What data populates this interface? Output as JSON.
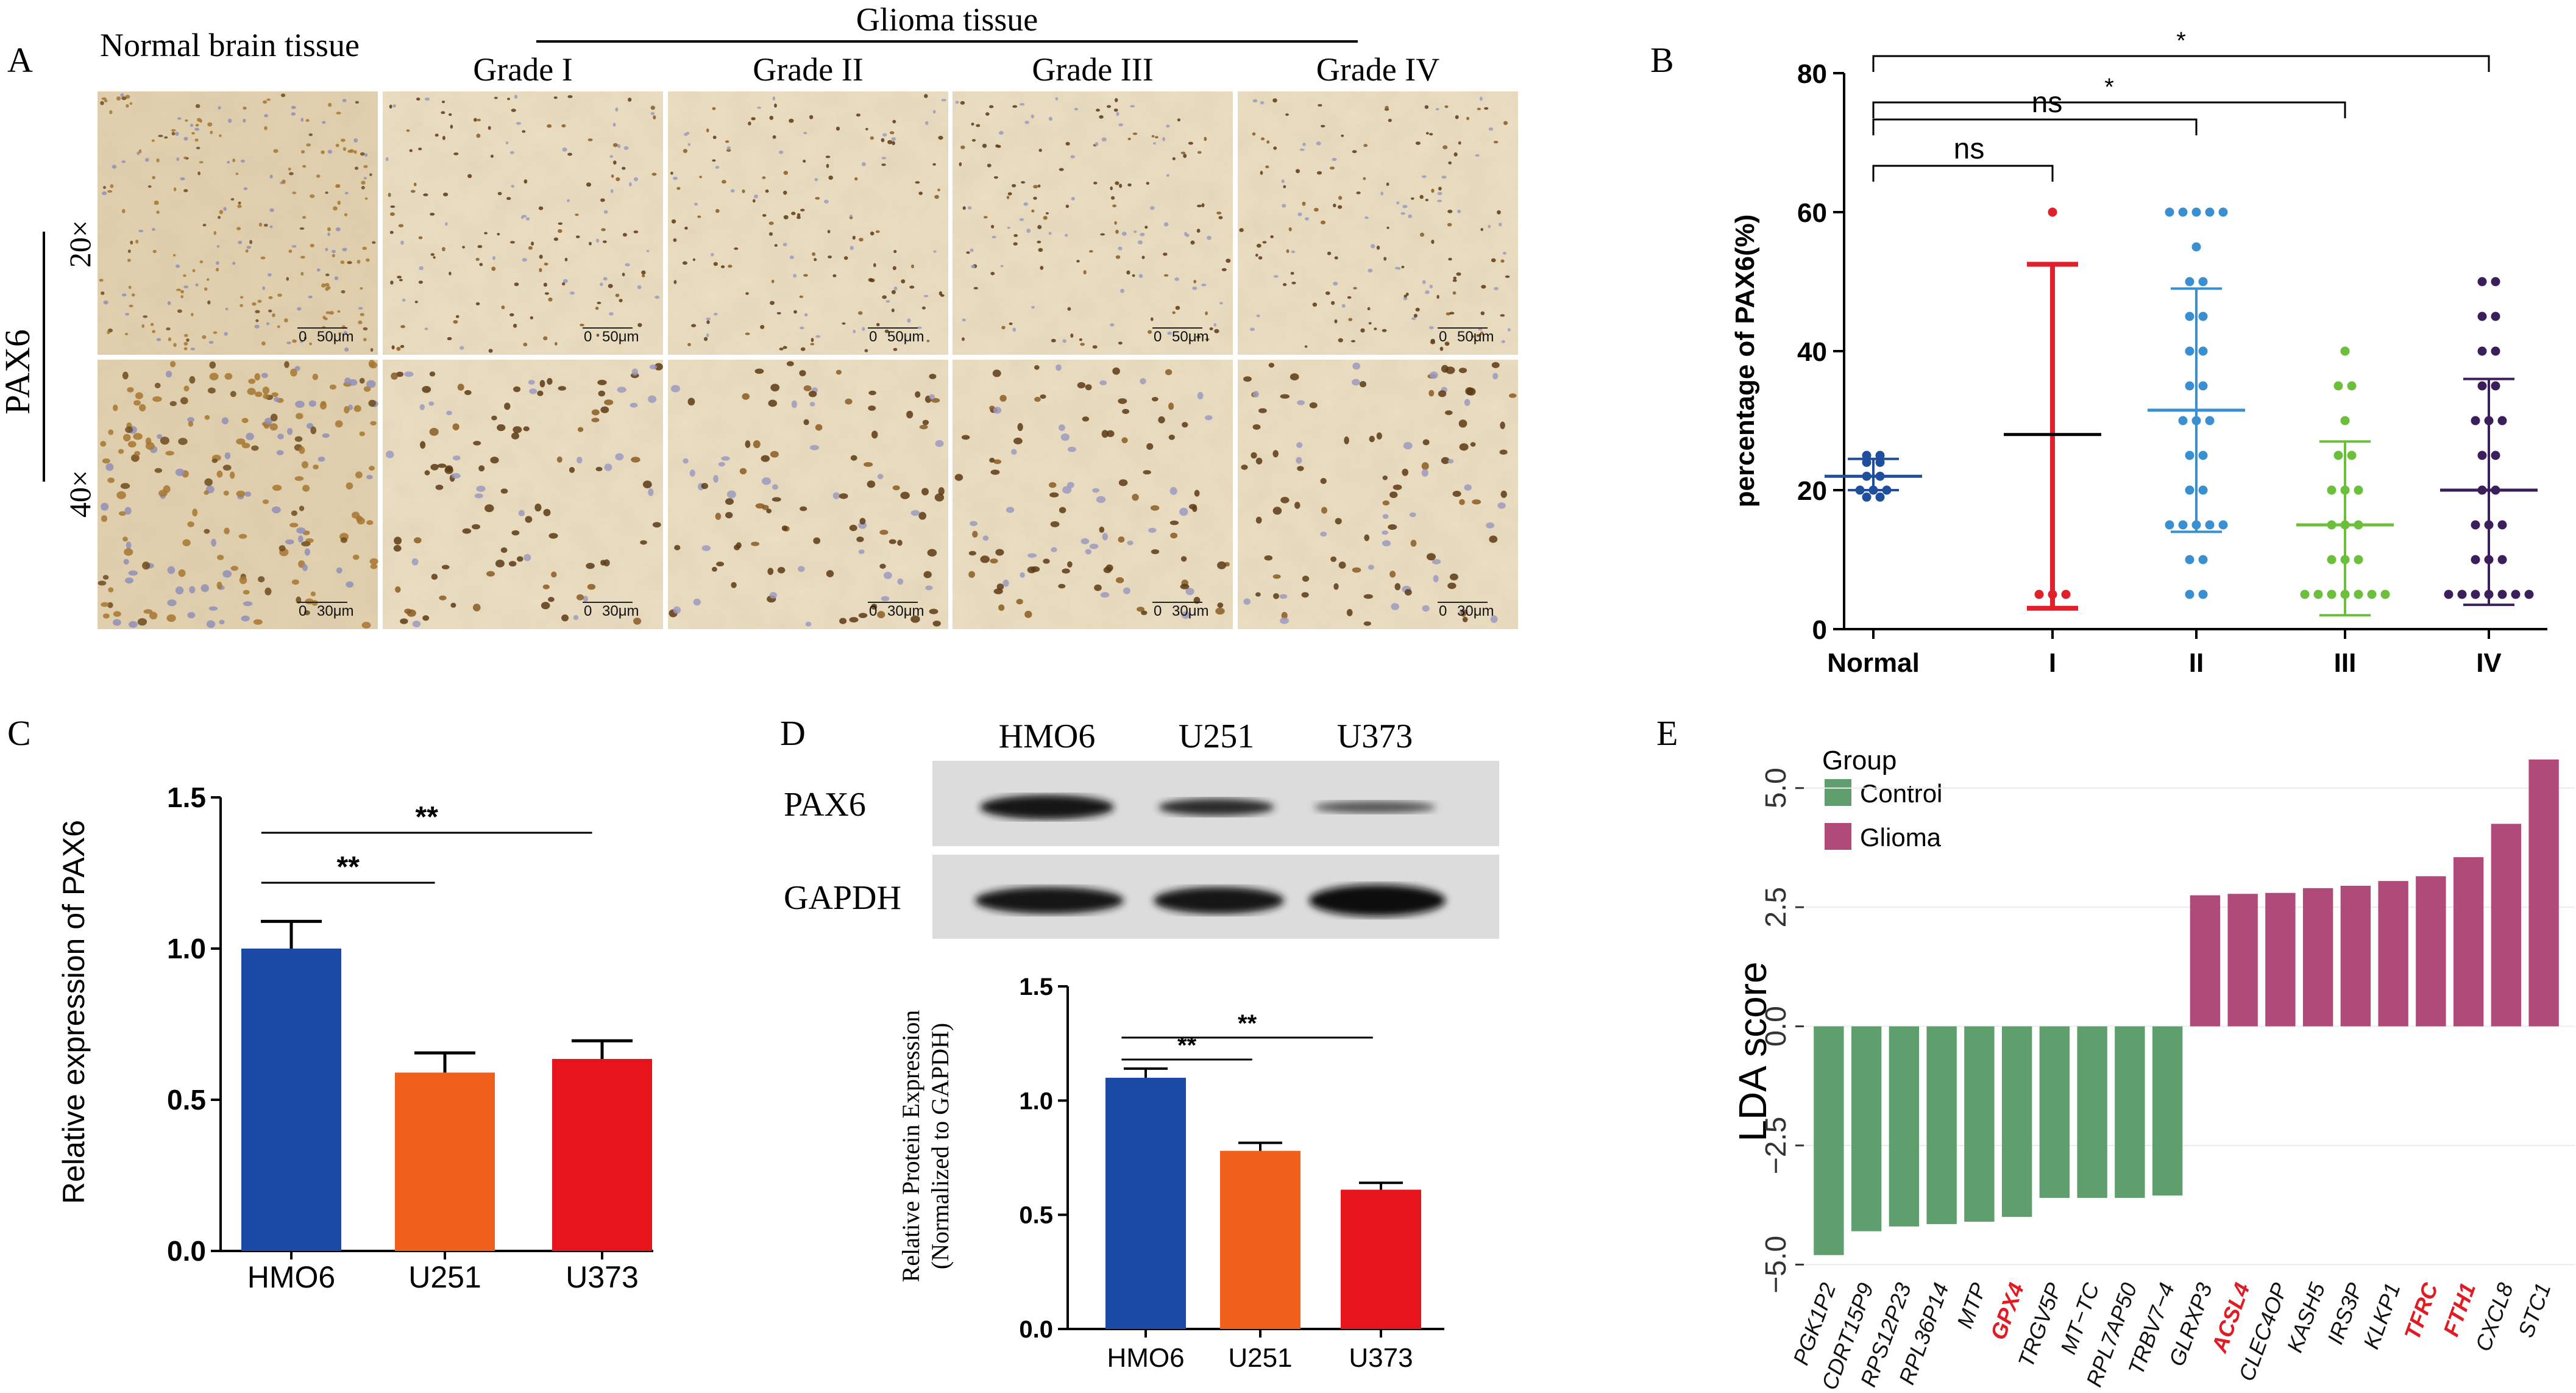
{
  "panels": {
    "A": {
      "letter": "A",
      "normal_label": "Normal brain tissue",
      "glioma_label": "Glioma tissue",
      "grades": [
        "Grade I",
        "Grade II",
        "Grade III",
        "Grade IV"
      ],
      "stain_label": "PAX6",
      "row_labels": [
        "20×",
        "40×"
      ],
      "scalebar_20x": [
        "0",
        "50μm"
      ],
      "scalebar_40x": [
        "0",
        "30μm"
      ]
    },
    "B": {
      "letter": "B"
    },
    "C": {
      "letter": "C"
    },
    "D": {
      "letter": "D",
      "blot_lanes": [
        "HMO6",
        "U251",
        "U373"
      ],
      "blot_rows": [
        "PAX6",
        "GAPDH"
      ]
    },
    "E": {
      "letter": "E"
    }
  },
  "colors": {
    "normal_navy": "#1f4e9c",
    "grade1_red": "#e0202a",
    "grade2_blue": "#3a8fd0",
    "grade3_green": "#6cbf3a",
    "grade4_purple": "#3b1f5a",
    "bar_blue": "#1a49a6",
    "bar_orange": "#f0601a",
    "bar_red": "#e8141c",
    "control_green": "#5f9f6e",
    "glioma_pink": "#b04a78",
    "highlight_red": "#e01b24"
  },
  "chart_data": [
    {
      "id": "B",
      "type": "scatter",
      "ylabel": "percentage of PAX6(%)",
      "categories": [
        "Normal",
        "I",
        "II",
        "III",
        "IV"
      ],
      "ylim": [
        0,
        80
      ],
      "yticks": [
        0,
        20,
        40,
        60,
        80
      ],
      "summary": [
        {
          "mean": 22,
          "sd_low": 20,
          "sd_high": 24.5
        },
        {
          "mean": 28,
          "sd_low": 3,
          "sd_high": 52.5
        },
        {
          "mean": 31.5,
          "sd_low": 14,
          "sd_high": 49
        },
        {
          "mean": 15,
          "sd_low": 2,
          "sd_high": 27
        },
        {
          "mean": 20,
          "sd_low": 3.5,
          "sd_high": 36
        }
      ],
      "points": [
        [
          19,
          19,
          20,
          20,
          20,
          22,
          22,
          24,
          24,
          25,
          25
        ],
        [
          60,
          5,
          5,
          5
        ],
        [
          60,
          60,
          60,
          60,
          60,
          55,
          50,
          50,
          45,
          45,
          40,
          40,
          35,
          35,
          30,
          30,
          30,
          25,
          25,
          20,
          20,
          15,
          15,
          15,
          15,
          15,
          10,
          10,
          5,
          5
        ],
        [
          40,
          35,
          35,
          30,
          25,
          25,
          20,
          20,
          20,
          15,
          15,
          15,
          10,
          10,
          10,
          5,
          5,
          5,
          5,
          5,
          5,
          5
        ],
        [
          50,
          50,
          45,
          45,
          40,
          40,
          35,
          35,
          30,
          30,
          30,
          25,
          25,
          20,
          20,
          15,
          15,
          15,
          10,
          10,
          10,
          5,
          5,
          5,
          5,
          5,
          5,
          5
        ]
      ],
      "comparisons": [
        {
          "from": 0,
          "to": 1,
          "label": "ns"
        },
        {
          "from": 0,
          "to": 2,
          "label": "ns"
        },
        {
          "from": 0,
          "to": 3,
          "label": "*"
        },
        {
          "from": 0,
          "to": 4,
          "label": "*"
        }
      ]
    },
    {
      "id": "C",
      "type": "bar",
      "ylabel": "Relative expression of PAX6",
      "categories": [
        "HMO6",
        "U251",
        "U373"
      ],
      "values": [
        1.0,
        0.59,
        0.635
      ],
      "errors": [
        0.09,
        0.065,
        0.06
      ],
      "ylim": [
        0,
        1.5
      ],
      "yticks": [
        "0.0",
        "0.5",
        "1.0",
        "1.5"
      ],
      "comparisons": [
        {
          "from": 0,
          "to": 1,
          "label": "**"
        },
        {
          "from": 0,
          "to": 2,
          "label": "**"
        }
      ]
    },
    {
      "id": "D",
      "type": "bar",
      "ylabel_lines": [
        "Relative Protein Expression",
        "(Normalized to GAPDH)"
      ],
      "categories": [
        "HMO6",
        "U251",
        "U373"
      ],
      "values": [
        1.1,
        0.78,
        0.61
      ],
      "errors": [
        0.04,
        0.035,
        0.03
      ],
      "ylim": [
        0,
        1.5
      ],
      "yticks": [
        "0.0",
        "0.5",
        "1.0",
        "1.5"
      ],
      "comparisons": [
        {
          "from": 0,
          "to": 1,
          "label": "**"
        },
        {
          "from": 0,
          "to": 2,
          "label": "**"
        }
      ]
    },
    {
      "id": "E",
      "type": "bar",
      "ylabel": "LDA score",
      "legend_title": "Group",
      "legend": [
        "Control",
        "Glioma"
      ],
      "yticks": [
        "−5.0",
        "−2.5",
        "0.0",
        "2.5",
        "5.0"
      ],
      "ytick_values": [
        -5,
        -2.5,
        0,
        2.5,
        5
      ],
      "ylim": [
        -5.2,
        5.7
      ],
      "categories": [
        "PGK1P2",
        "CDRT15P9",
        "RPS12P23",
        "RPL36P14",
        "MTP",
        "GPX4",
        "TRGV5P",
        "MT−TC",
        "RPL7AP50",
        "TRBV7−4",
        "GLRXP3",
        "ACSL4",
        "CLEC4OP",
        "KASH5",
        "IRS3P",
        "KLKP1",
        "TFRC",
        "FTH1",
        "CXCL8",
        "STC1"
      ],
      "values": [
        -4.8,
        -4.3,
        -4.2,
        -4.15,
        -4.1,
        -4.0,
        -3.6,
        -3.6,
        -3.6,
        -3.55,
        2.75,
        2.78,
        2.8,
        2.9,
        2.95,
        3.05,
        3.15,
        3.55,
        4.25,
        5.6
      ],
      "groups": [
        "Control",
        "Control",
        "Control",
        "Control",
        "Control",
        "Control",
        "Control",
        "Control",
        "Control",
        "Control",
        "Glioma",
        "Glioma",
        "Glioma",
        "Glioma",
        "Glioma",
        "Glioma",
        "Glioma",
        "Glioma",
        "Glioma",
        "Glioma"
      ],
      "highlighted": [
        "GPX4",
        "ACSL4",
        "TFRC",
        "FTH1"
      ]
    }
  ]
}
